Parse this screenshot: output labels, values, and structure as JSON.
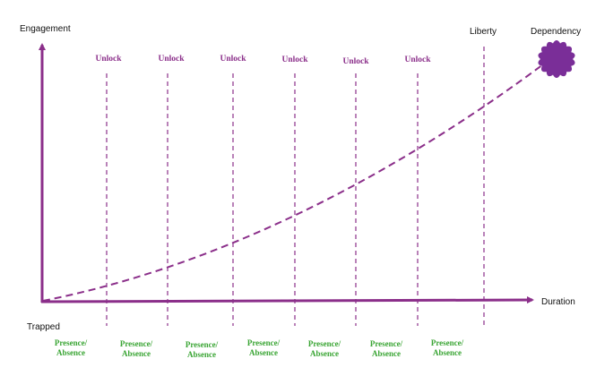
{
  "labels": {
    "y_axis": "Engagement",
    "x_axis": "Duration",
    "origin": "Trapped",
    "end_line": "Liberty",
    "endpoint": "Dependency"
  },
  "unlock_labels": [
    "Unlock",
    "Unlock",
    "Unlock",
    "Unlock",
    "Unlock",
    "Unlock"
  ],
  "presence_labels": [
    {
      "line1": "Presence/",
      "line2": "Absence"
    },
    {
      "line1": "Presence/",
      "line2": "Absence"
    },
    {
      "line1": "Presence/",
      "line2": "Absence"
    },
    {
      "line1": "Presence/",
      "line2": "Absence"
    },
    {
      "line1": "Presence/",
      "line2": "Absence"
    },
    {
      "line1": "Presence/",
      "line2": "Absence"
    },
    {
      "line1": "Presence/",
      "line2": "Absence"
    }
  ],
  "colors": {
    "accent": "#8b2f8a",
    "presence": "#3aa534",
    "text": "#111111"
  },
  "icons": {
    "endpoint": "dependency-seal-icon"
  }
}
